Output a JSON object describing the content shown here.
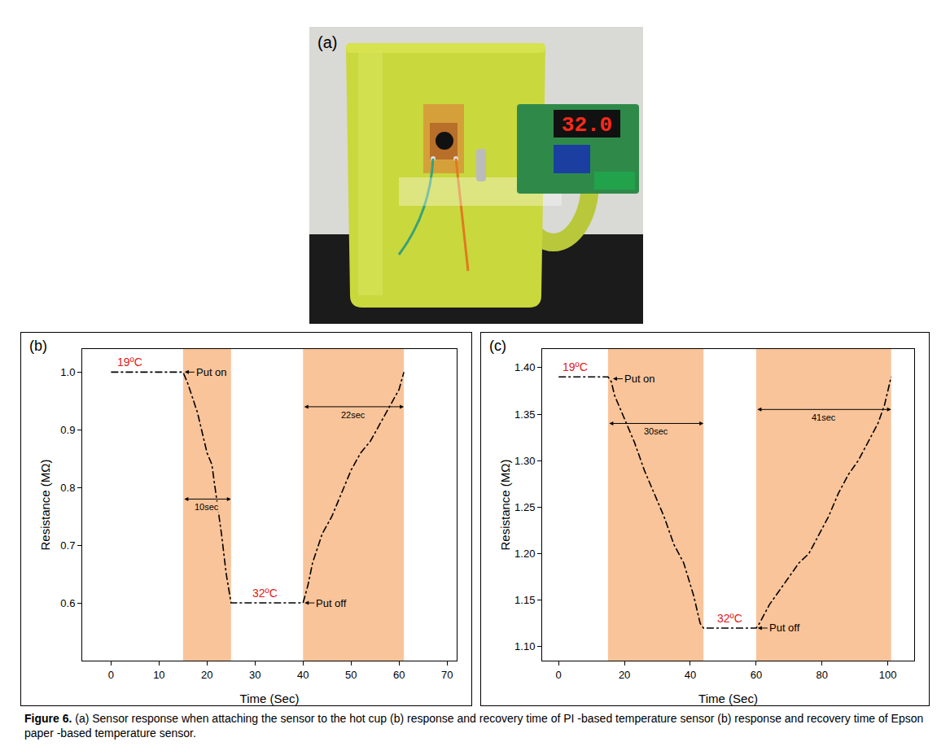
{
  "photo": {
    "label": "(a)",
    "display": "32.0"
  },
  "chart_data": [
    {
      "panel": "(b)",
      "type": "line",
      "x_label": "Time (Sec)",
      "y_label": "Resistance (MΩ)",
      "xlim": [
        -6,
        72
      ],
      "xticks": [
        0,
        10,
        20,
        30,
        40,
        50,
        60,
        70
      ],
      "ylim": [
        0.5,
        1.04
      ],
      "yticks": [
        0.6,
        0.7,
        0.8,
        0.9,
        {
          "value": 1,
          "label": "1.0"
        }
      ],
      "series": [
        {
          "color": "#000000",
          "line_style": "dashdot",
          "x": [
            0,
            15,
            16,
            18,
            20,
            21,
            22,
            23,
            24,
            25,
            30,
            40,
            41,
            42,
            44,
            46,
            48,
            50,
            52,
            54,
            56,
            58,
            60,
            61
          ],
          "values": [
            1.0,
            1.0,
            0.98,
            0.93,
            0.86,
            0.84,
            0.78,
            0.72,
            0.65,
            0.6,
            0.6,
            0.6,
            0.63,
            0.67,
            0.72,
            0.75,
            0.79,
            0.83,
            0.86,
            0.88,
            0.91,
            0.94,
            0.97,
            1.0
          ]
        }
      ],
      "shaded": {
        "color": "#f9c49a",
        "ranges": [
          [
            15,
            25
          ],
          [
            40,
            61
          ]
        ]
      },
      "annotations": [
        {
          "text": "19ºC",
          "x": 4,
          "y": 1.0,
          "color": "#e0201b"
        },
        {
          "text": "Put on",
          "x": 15,
          "y": 1.0,
          "arrow": true
        },
        {
          "text": "10sec",
          "x0": 15,
          "x1": 25,
          "y": 0.78
        },
        {
          "text": "32ºC",
          "x": 32,
          "y": 0.6,
          "color": "#e0201b"
        },
        {
          "text": "Put off",
          "x": 40,
          "y": 0.6,
          "arrow": true
        },
        {
          "text": "22sec",
          "x0": 40,
          "x1": 61,
          "y": 0.94
        }
      ]
    },
    {
      "panel": "(c)",
      "type": "line",
      "x_label": "Time (Sec)",
      "y_label": "Resistance (MΩ)",
      "xlim": [
        -5,
        108
      ],
      "xticks": [
        0,
        20,
        40,
        60,
        80,
        100
      ],
      "ylim": [
        1.085,
        1.42
      ],
      "yticks": [
        {
          "value": 1.1,
          "label": "1.10"
        },
        1.15,
        {
          "value": 1.2,
          "label": "1.20"
        },
        1.25,
        {
          "value": 1.3,
          "label": "1.30"
        },
        1.35,
        {
          "value": 1.4,
          "label": "1.40"
        }
      ],
      "series": [
        {
          "color": "#000000",
          "line_style": "dashdot",
          "x": [
            0,
            15,
            16,
            17,
            20,
            23,
            26,
            29,
            32,
            35,
            38,
            41,
            43,
            44,
            50,
            60,
            61,
            64,
            67,
            70,
            73,
            76,
            79,
            82,
            85,
            88,
            91,
            94,
            97,
            99,
            101
          ],
          "values": [
            1.39,
            1.39,
            1.385,
            1.37,
            1.345,
            1.32,
            1.29,
            1.265,
            1.24,
            1.21,
            1.19,
            1.155,
            1.125,
            1.12,
            1.12,
            1.12,
            1.125,
            1.145,
            1.16,
            1.175,
            1.19,
            1.2,
            1.22,
            1.24,
            1.265,
            1.285,
            1.3,
            1.32,
            1.34,
            1.36,
            1.39
          ]
        }
      ],
      "shaded": {
        "color": "#f9c49a",
        "ranges": [
          [
            15,
            44
          ],
          [
            60,
            101
          ]
        ]
      },
      "annotations": [
        {
          "text": "19ºC",
          "x": 5,
          "y": 1.39,
          "color": "#e0201b"
        },
        {
          "text": "Put on",
          "x": 16,
          "y": 1.388,
          "arrow": true
        },
        {
          "text": "30sec",
          "x0": 15,
          "x1": 44,
          "y": 1.34
        },
        {
          "text": "32ºC",
          "x": 52,
          "y": 1.12,
          "color": "#e0201b"
        },
        {
          "text": "Put off",
          "x": 60,
          "y": 1.12,
          "arrow": true
        },
        {
          "text": "41sec",
          "x0": 60,
          "x1": 101,
          "y": 1.355
        }
      ]
    }
  ],
  "caption": {
    "label": "Figure 6.",
    "text": "(a) Sensor response when attaching the sensor to the hot cup (b) response and recovery time of PI -based temperature sensor (b) response and recovery time of Epson paper -based temperature sensor."
  }
}
